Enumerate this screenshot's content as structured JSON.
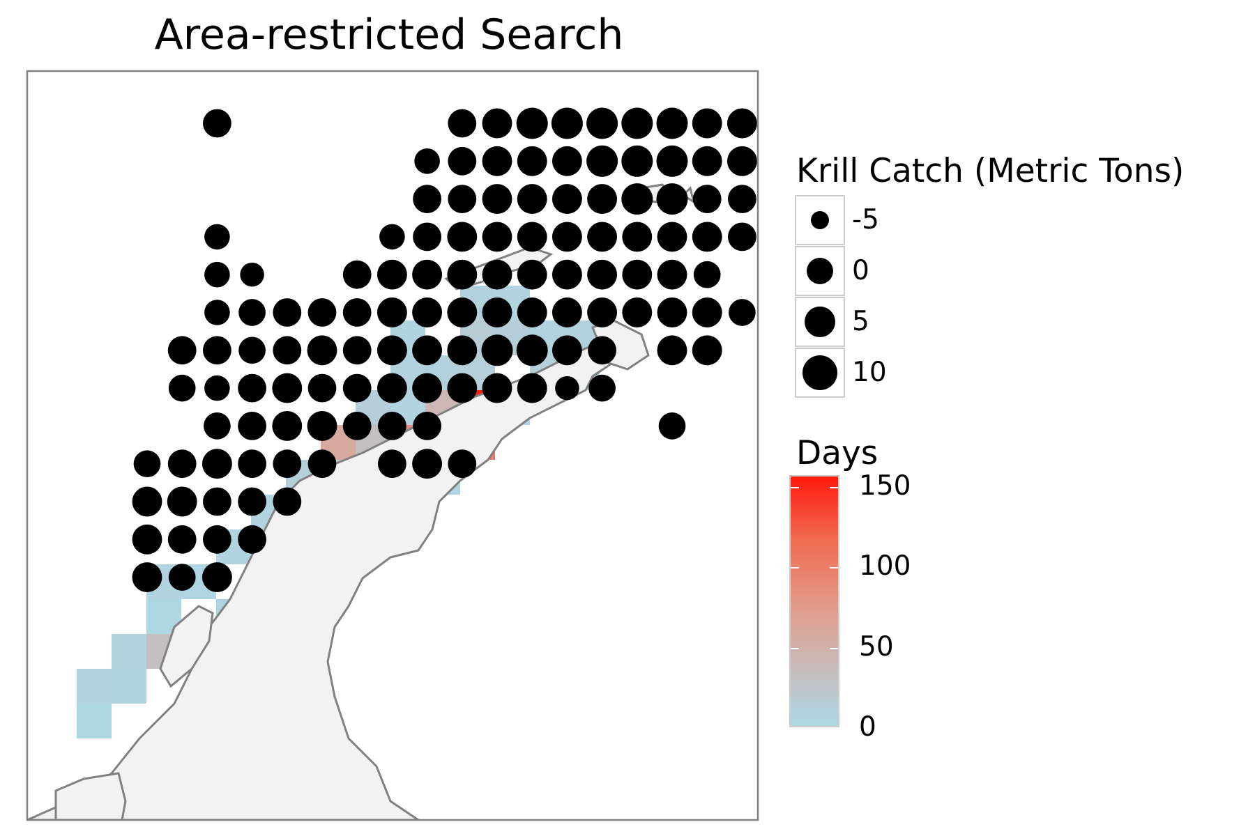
{
  "title": "Area-restricted Search",
  "legend_size": {
    "title": "Krill Catch (Metric Tons)",
    "entries": [
      {
        "label": "-5",
        "value": -5
      },
      {
        "label": "0",
        "value": 0
      },
      {
        "label": "5",
        "value": 5
      },
      {
        "label": "10",
        "value": 10
      }
    ]
  },
  "legend_color": {
    "title": "Days",
    "ticks": [
      "150",
      "100",
      "50",
      "0"
    ],
    "range": [
      0,
      150
    ],
    "low_color": "#add8e6",
    "high_color": "#ff1a0f"
  },
  "colors": {
    "land": "#f2f2f2",
    "coast": "#808080",
    "point": "#000000",
    "panel_border": "#808080"
  },
  "catch_rows": [
    {
      "y": 0,
      "cells": [
        [
          5,
          8
        ],
        [
          12,
          8
        ],
        [
          13,
          9
        ],
        [
          14,
          10
        ],
        [
          15,
          10
        ],
        [
          16,
          10
        ],
        [
          17,
          10
        ],
        [
          18,
          10
        ],
        [
          19,
          9
        ],
        [
          20,
          9
        ]
      ]
    },
    {
      "y": 1,
      "cells": [
        [
          11,
          6
        ],
        [
          12,
          8
        ],
        [
          13,
          9
        ],
        [
          14,
          9
        ],
        [
          15,
          9
        ],
        [
          16,
          10
        ],
        [
          17,
          10
        ],
        [
          18,
          10
        ],
        [
          19,
          9
        ],
        [
          20,
          9
        ]
      ]
    },
    {
      "y": 2,
      "cells": [
        [
          11,
          8
        ],
        [
          12,
          8
        ],
        [
          13,
          9
        ],
        [
          14,
          9
        ],
        [
          15,
          9
        ],
        [
          16,
          9
        ],
        [
          17,
          10
        ],
        [
          18,
          10
        ],
        [
          19,
          8
        ],
        [
          20,
          8
        ]
      ]
    },
    {
      "y": 3,
      "cells": [
        [
          5,
          6
        ],
        [
          10,
          6
        ],
        [
          11,
          8
        ],
        [
          12,
          9
        ],
        [
          13,
          9
        ],
        [
          14,
          9
        ],
        [
          15,
          9
        ],
        [
          16,
          9
        ],
        [
          17,
          9
        ],
        [
          18,
          9
        ],
        [
          19,
          9
        ],
        [
          20,
          8
        ]
      ]
    },
    {
      "y": 4,
      "cells": [
        [
          5,
          6
        ],
        [
          6,
          5
        ],
        [
          9,
          8
        ],
        [
          10,
          9
        ],
        [
          11,
          9
        ],
        [
          12,
          9
        ],
        [
          13,
          9
        ],
        [
          14,
          9
        ],
        [
          15,
          9
        ],
        [
          16,
          9
        ],
        [
          17,
          9
        ],
        [
          18,
          9
        ],
        [
          19,
          7
        ]
      ]
    },
    {
      "y": 5,
      "cells": [
        [
          5,
          6
        ],
        [
          6,
          7
        ],
        [
          7,
          8
        ],
        [
          8,
          8
        ],
        [
          9,
          8
        ],
        [
          10,
          9
        ],
        [
          11,
          9
        ],
        [
          12,
          9
        ],
        [
          13,
          9
        ],
        [
          14,
          9
        ],
        [
          15,
          9
        ],
        [
          16,
          9
        ],
        [
          17,
          9
        ],
        [
          18,
          9
        ],
        [
          19,
          9
        ],
        [
          20,
          7
        ]
      ]
    },
    {
      "y": 6,
      "cells": [
        [
          4,
          8
        ],
        [
          5,
          8
        ],
        [
          6,
          7
        ],
        [
          7,
          8
        ],
        [
          8,
          9
        ],
        [
          9,
          8
        ],
        [
          10,
          9
        ],
        [
          11,
          9
        ],
        [
          12,
          9
        ],
        [
          13,
          10
        ],
        [
          14,
          10
        ],
        [
          15,
          9
        ],
        [
          16,
          8
        ],
        [
          18,
          9
        ],
        [
          19,
          9
        ]
      ]
    },
    {
      "y": 7,
      "cells": [
        [
          4,
          7
        ],
        [
          5,
          6
        ],
        [
          6,
          8
        ],
        [
          7,
          9
        ],
        [
          8,
          8
        ],
        [
          9,
          8
        ],
        [
          10,
          9
        ],
        [
          11,
          9
        ],
        [
          12,
          9
        ],
        [
          13,
          9
        ],
        [
          14,
          9
        ],
        [
          15,
          5
        ],
        [
          16,
          7
        ]
      ]
    },
    {
      "y": 8,
      "cells": [
        [
          5,
          7
        ],
        [
          6,
          8
        ],
        [
          7,
          9
        ],
        [
          8,
          9
        ],
        [
          9,
          8
        ],
        [
          10,
          8
        ],
        [
          11,
          8
        ],
        [
          18,
          7
        ]
      ]
    },
    {
      "y": 9,
      "cells": [
        [
          3,
          7
        ],
        [
          4,
          8
        ],
        [
          5,
          9
        ],
        [
          6,
          8
        ],
        [
          7,
          8
        ],
        [
          8,
          8
        ],
        [
          10,
          8
        ],
        [
          11,
          9
        ],
        [
          12,
          8
        ]
      ]
    },
    {
      "y": 10,
      "cells": [
        [
          3,
          9
        ],
        [
          4,
          9
        ],
        [
          5,
          8
        ],
        [
          6,
          8
        ],
        [
          7,
          8
        ]
      ]
    },
    {
      "y": 11,
      "cells": [
        [
          3,
          9
        ],
        [
          4,
          8
        ],
        [
          5,
          8
        ],
        [
          6,
          8
        ]
      ]
    },
    {
      "y": 12,
      "cells": [
        [
          3,
          9
        ],
        [
          4,
          7
        ],
        [
          5,
          9
        ]
      ]
    }
  ],
  "days_cells": [
    [
      14,
      6,
      6
    ],
    [
      15,
      6,
      8
    ],
    [
      14,
      7,
      10
    ],
    [
      15,
      7,
      8
    ],
    [
      12,
      6,
      15
    ],
    [
      13,
      6,
      12
    ],
    [
      12,
      7,
      10
    ],
    [
      11,
      8,
      40
    ],
    [
      10,
      9,
      80
    ],
    [
      11,
      9,
      110
    ],
    [
      12,
      9,
      90
    ],
    [
      12,
      8,
      150
    ],
    [
      9,
      9,
      30
    ],
    [
      8,
      9,
      55
    ],
    [
      9,
      10,
      25
    ],
    [
      8,
      10,
      20
    ],
    [
      7,
      10,
      10
    ],
    [
      8,
      11,
      5
    ],
    [
      7,
      11,
      8
    ],
    [
      6,
      11,
      5
    ],
    [
      6,
      12,
      12
    ],
    [
      5,
      12,
      4
    ],
    [
      7,
      12,
      3
    ],
    [
      6,
      13,
      55
    ],
    [
      6,
      14,
      6
    ],
    [
      5,
      14,
      4
    ],
    [
      4,
      13,
      3
    ],
    [
      3,
      13,
      5
    ],
    [
      3,
      14,
      2
    ],
    [
      2,
      15,
      6
    ],
    [
      3,
      15,
      30
    ],
    [
      2,
      16,
      4
    ],
    [
      1,
      16,
      5
    ],
    [
      1,
      17,
      2
    ],
    [
      4,
      15,
      3
    ],
    [
      10,
      7,
      6
    ],
    [
      11,
      7,
      8
    ],
    [
      13,
      5,
      5
    ],
    [
      12,
      5,
      8
    ],
    [
      10,
      6,
      4
    ],
    [
      13,
      8,
      3
    ],
    [
      10,
      8,
      5
    ],
    [
      9,
      8,
      12
    ],
    [
      11,
      10,
      4
    ]
  ]
}
